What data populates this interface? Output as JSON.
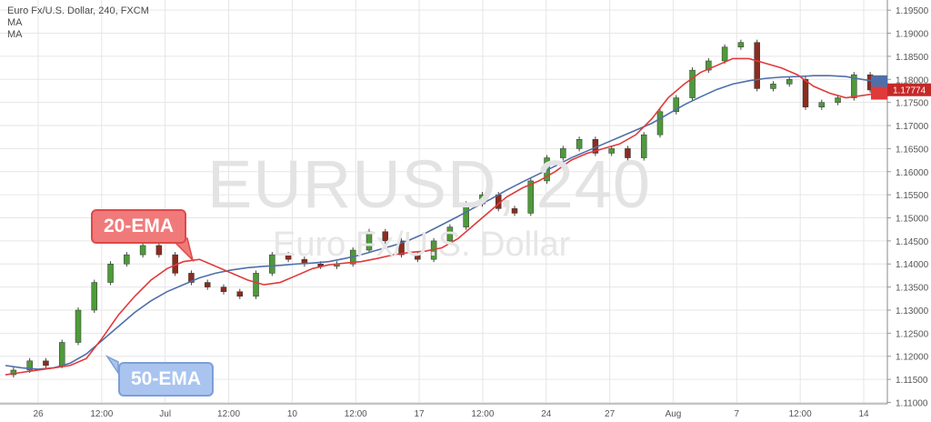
{
  "legend": {
    "symbol_line": "Euro Fx/U.S. Dollar, 240, FXCM",
    "ma1": "MA",
    "ma2": "MA"
  },
  "watermark": {
    "symbol": "EURUSD, 240",
    "name": "Euro Fx/U.S. Dollar"
  },
  "callouts": {
    "ema20": "20-EMA",
    "ema50": "50-EMA"
  },
  "colors": {
    "up": "#4e9a3a",
    "down": "#8b2c1f",
    "ema20": "#e03a3a",
    "ema50": "#4f6fa8",
    "grid": "#e6e6e6"
  },
  "chart_data": {
    "type": "line",
    "title": "",
    "ylim": [
      1.1097,
      1.1972
    ],
    "y_ticks": [
      "1.19500",
      "1.19000",
      "1.18500",
      "1.18000",
      "1.17500",
      "1.17000",
      "1.16500",
      "1.16000",
      "1.15500",
      "1.15000",
      "1.14500",
      "1.14000",
      "1.13500",
      "1.13000",
      "1.12500",
      "1.12000",
      "1.11500",
      "1.11000"
    ],
    "x_ticks": [
      "26",
      "12:00",
      "Jul",
      "12:00",
      "10",
      "12:00",
      "17",
      "12:00",
      "24",
      "27",
      "Aug",
      "7",
      "12:00",
      "14"
    ],
    "last_price": "1.17774",
    "series": [
      {
        "name": "20-EMA",
        "values": [
          1.116,
          1.1165,
          1.117,
          1.1175,
          1.118,
          1.1195,
          1.124,
          1.129,
          1.133,
          1.1365,
          1.139,
          1.1405,
          1.141,
          1.1395,
          1.138,
          1.1365,
          1.1355,
          1.136,
          1.1375,
          1.139,
          1.1398,
          1.1402,
          1.1405,
          1.1412,
          1.142,
          1.1425,
          1.1428,
          1.1435,
          1.1455,
          1.1485,
          1.1515,
          1.1545,
          1.1565,
          1.158,
          1.16,
          1.1625,
          1.164,
          1.165,
          1.166,
          1.168,
          1.1715,
          1.176,
          1.179,
          1.1815,
          1.183,
          1.1845,
          1.1845,
          1.1835,
          1.1825,
          1.181,
          1.1785,
          1.177,
          1.176,
          1.1765,
          1.177
        ]
      },
      {
        "name": "50-EMA",
        "values": [
          1.118,
          1.1175,
          1.1172,
          1.1175,
          1.1185,
          1.1205,
          1.1235,
          1.1265,
          1.1295,
          1.132,
          1.134,
          1.1355,
          1.137,
          1.138,
          1.1387,
          1.1392,
          1.1395,
          1.1397,
          1.14,
          1.1402,
          1.1405,
          1.1412,
          1.142,
          1.143,
          1.144,
          1.1452,
          1.1467,
          1.1485,
          1.1503,
          1.1522,
          1.154,
          1.156,
          1.1578,
          1.1595,
          1.1612,
          1.163,
          1.1645,
          1.166,
          1.1675,
          1.169,
          1.1705,
          1.1725,
          1.1745,
          1.1762,
          1.1778,
          1.179,
          1.1797,
          1.1802,
          1.1805,
          1.1806,
          1.1808,
          1.1808,
          1.1806,
          1.18,
          1.1795
        ]
      },
      {
        "name": "EUR/USD 240",
        "values": [
          1.116,
          1.117,
          1.119,
          1.118,
          1.123,
          1.13,
          1.136,
          1.14,
          1.142,
          1.144,
          1.142,
          1.138,
          1.136,
          1.135,
          1.134,
          1.133,
          1.138,
          1.142,
          1.141,
          1.14,
          1.1395,
          1.14,
          1.143,
          1.147,
          1.145,
          1.142,
          1.141,
          1.145,
          1.148,
          1.153,
          1.155,
          1.152,
          1.151,
          1.158,
          1.163,
          1.165,
          1.167,
          1.164,
          1.165,
          1.163,
          1.168,
          1.173,
          1.176,
          1.182,
          1.184,
          1.187,
          1.188,
          1.178,
          1.179,
          1.18,
          1.174,
          1.175,
          1.176,
          1.181,
          1.1777
        ]
      }
    ]
  }
}
